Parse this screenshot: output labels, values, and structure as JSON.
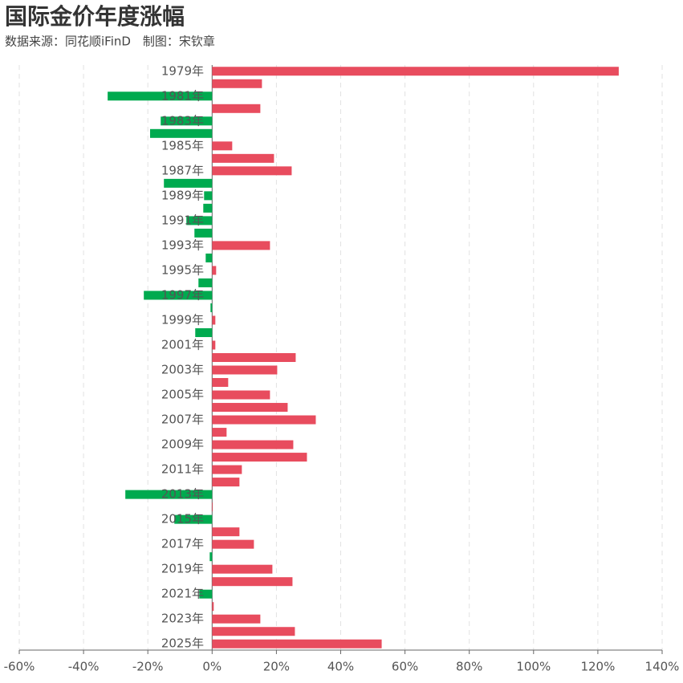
{
  "chart_data": {
    "type": "hbar",
    "title": "国际金价年度涨幅",
    "subtitle": "数据来源：同花顺iFinD　制图：宋钦章",
    "categories": [
      "1979年",
      null,
      "1981年",
      null,
      "1983年",
      null,
      "1985年",
      null,
      "1987年",
      null,
      "1989年",
      null,
      "1991年",
      null,
      "1993年",
      null,
      "1995年",
      null,
      "1997年",
      null,
      "1999年",
      null,
      "2001年",
      null,
      "2003年",
      null,
      "2005年",
      null,
      "2007年",
      null,
      "2009年",
      null,
      "2011年",
      null,
      "2013年",
      null,
      "2015年",
      null,
      "2017年",
      null,
      "2019年",
      null,
      "2021年",
      null,
      "2023年",
      null,
      "2025年"
    ],
    "values": [
      126.5,
      15.5,
      -32.5,
      15,
      -16,
      -19.3,
      6.25,
      19.25,
      24.75,
      -15,
      -2.5,
      -2.75,
      -8,
      -5.5,
      18,
      -2,
      1.25,
      -4.25,
      -21.25,
      -0.5,
      1,
      -5.25,
      1,
      26,
      20.25,
      5,
      18,
      23.5,
      32.25,
      4.5,
      25.25,
      29.5,
      9.25,
      8.5,
      -27,
      0.2,
      -11.75,
      8.5,
      13,
      -0.75,
      18.75,
      25,
      -4,
      0.5,
      15,
      25.75,
      52.75
    ],
    "positive_color": "#e84c5e",
    "negative_color": "#00aa4f",
    "xlim": [
      -60,
      140
    ],
    "xticks": [
      {
        "value": -60,
        "label": "-60%"
      },
      {
        "value": -40,
        "label": "-40%"
      },
      {
        "value": -20,
        "label": "-20%"
      },
      {
        "value": 0,
        "label": "0%"
      },
      {
        "value": 20,
        "label": "20%"
      },
      {
        "value": 40,
        "label": "40%"
      },
      {
        "value": 60,
        "label": "60%"
      },
      {
        "value": 80,
        "label": "80%"
      },
      {
        "value": 100,
        "label": "100%"
      },
      {
        "value": 120,
        "label": "120%"
      },
      {
        "value": 140,
        "label": "140%"
      }
    ],
    "grid": true
  }
}
